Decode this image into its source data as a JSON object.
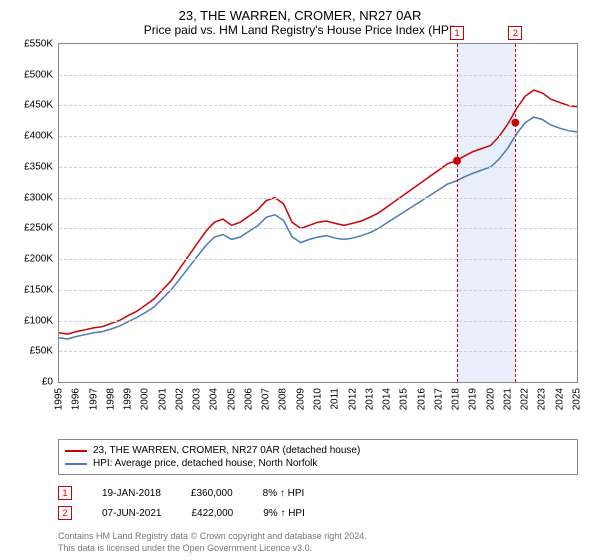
{
  "title": "23, THE WARREN, CROMER, NR27 0AR",
  "subtitle": "Price paid vs. HM Land Registry's House Price Index (HPI)",
  "chart": {
    "type": "line",
    "ylim": [
      0,
      550000
    ],
    "ytick_step": 50000,
    "ytick_format": "£K",
    "xlim": [
      1995,
      2025
    ],
    "xtick_step": 1,
    "grid_color": "#d0d0d0",
    "border_color": "#888888",
    "background_color": "#ffffff",
    "line_width": 1.5,
    "series": [
      {
        "name": "23, THE WARREN, CROMER, NR27 0AR (detached house)",
        "color": "#cc0000",
        "data": [
          [
            1995,
            80000
          ],
          [
            1995.5,
            78000
          ],
          [
            1996,
            82000
          ],
          [
            1996.5,
            85000
          ],
          [
            1997,
            88000
          ],
          [
            1997.5,
            90000
          ],
          [
            1998,
            95000
          ],
          [
            1998.5,
            100000
          ],
          [
            1999,
            108000
          ],
          [
            1999.5,
            115000
          ],
          [
            2000,
            125000
          ],
          [
            2000.5,
            135000
          ],
          [
            2001,
            150000
          ],
          [
            2001.5,
            165000
          ],
          [
            2002,
            185000
          ],
          [
            2002.5,
            205000
          ],
          [
            2003,
            225000
          ],
          [
            2003.5,
            245000
          ],
          [
            2004,
            260000
          ],
          [
            2004.5,
            265000
          ],
          [
            2005,
            255000
          ],
          [
            2005.5,
            260000
          ],
          [
            2006,
            270000
          ],
          [
            2006.5,
            280000
          ],
          [
            2007,
            295000
          ],
          [
            2007.5,
            300000
          ],
          [
            2008,
            290000
          ],
          [
            2008.5,
            260000
          ],
          [
            2009,
            250000
          ],
          [
            2009.5,
            255000
          ],
          [
            2010,
            260000
          ],
          [
            2010.5,
            262000
          ],
          [
            2011,
            258000
          ],
          [
            2011.5,
            255000
          ],
          [
            2012,
            258000
          ],
          [
            2012.5,
            262000
          ],
          [
            2013,
            268000
          ],
          [
            2013.5,
            275000
          ],
          [
            2014,
            285000
          ],
          [
            2014.5,
            295000
          ],
          [
            2015,
            305000
          ],
          [
            2015.5,
            315000
          ],
          [
            2016,
            325000
          ],
          [
            2016.5,
            335000
          ],
          [
            2017,
            345000
          ],
          [
            2017.5,
            355000
          ],
          [
            2018,
            360000
          ],
          [
            2018.5,
            368000
          ],
          [
            2019,
            375000
          ],
          [
            2019.5,
            380000
          ],
          [
            2020,
            385000
          ],
          [
            2020.5,
            400000
          ],
          [
            2021,
            420000
          ],
          [
            2021.5,
            445000
          ],
          [
            2022,
            465000
          ],
          [
            2022.5,
            475000
          ],
          [
            2023,
            470000
          ],
          [
            2023.5,
            460000
          ],
          [
            2024,
            455000
          ],
          [
            2024.5,
            450000
          ],
          [
            2025,
            448000
          ]
        ]
      },
      {
        "name": "HPI: Average price, detached house, North Norfolk",
        "color": "#4a7ab8",
        "data": [
          [
            1995,
            72000
          ],
          [
            1995.5,
            70000
          ],
          [
            1996,
            74000
          ],
          [
            1996.5,
            77000
          ],
          [
            1997,
            80000
          ],
          [
            1997.5,
            82000
          ],
          [
            1998,
            86000
          ],
          [
            1998.5,
            91000
          ],
          [
            1999,
            98000
          ],
          [
            1999.5,
            105000
          ],
          [
            2000,
            113000
          ],
          [
            2000.5,
            122000
          ],
          [
            2001,
            136000
          ],
          [
            2001.5,
            150000
          ],
          [
            2002,
            168000
          ],
          [
            2002.5,
            186000
          ],
          [
            2003,
            204000
          ],
          [
            2003.5,
            222000
          ],
          [
            2004,
            236000
          ],
          [
            2004.5,
            240000
          ],
          [
            2005,
            232000
          ],
          [
            2005.5,
            236000
          ],
          [
            2006,
            245000
          ],
          [
            2006.5,
            254000
          ],
          [
            2007,
            268000
          ],
          [
            2007.5,
            272000
          ],
          [
            2008,
            263000
          ],
          [
            2008.5,
            236000
          ],
          [
            2009,
            227000
          ],
          [
            2009.5,
            232000
          ],
          [
            2010,
            236000
          ],
          [
            2010.5,
            238000
          ],
          [
            2011,
            234000
          ],
          [
            2011.5,
            232000
          ],
          [
            2012,
            234000
          ],
          [
            2012.5,
            238000
          ],
          [
            2013,
            243000
          ],
          [
            2013.5,
            250000
          ],
          [
            2014,
            259000
          ],
          [
            2014.5,
            268000
          ],
          [
            2015,
            277000
          ],
          [
            2015.5,
            286000
          ],
          [
            2016,
            295000
          ],
          [
            2016.5,
            304000
          ],
          [
            2017,
            313000
          ],
          [
            2017.5,
            322000
          ],
          [
            2018,
            327000
          ],
          [
            2018.5,
            334000
          ],
          [
            2019,
            340000
          ],
          [
            2019.5,
            345000
          ],
          [
            2020,
            350000
          ],
          [
            2020.5,
            363000
          ],
          [
            2021,
            381000
          ],
          [
            2021.5,
            404000
          ],
          [
            2022,
            422000
          ],
          [
            2022.5,
            431000
          ],
          [
            2023,
            427000
          ],
          [
            2023.5,
            418000
          ],
          [
            2024,
            413000
          ],
          [
            2024.5,
            409000
          ],
          [
            2025,
            407000
          ]
        ]
      }
    ],
    "sale_markers": [
      {
        "id": "1",
        "year": 2018.05,
        "price": 360000
      },
      {
        "id": "2",
        "year": 2021.43,
        "price": 422000
      }
    ],
    "shade_region": {
      "from": 2018.05,
      "to": 2021.43,
      "color": "rgba(100,150,220,0.15)"
    }
  },
  "legend": {
    "items": [
      {
        "label": "23, THE WARREN, CROMER, NR27 0AR (detached house)",
        "color": "#cc0000"
      },
      {
        "label": "HPI: Average price, detached house, North Norfolk",
        "color": "#4a7ab8"
      }
    ]
  },
  "sales": [
    {
      "marker": "1",
      "date": "19-JAN-2018",
      "price": "£360,000",
      "delta": "8% ↑ HPI"
    },
    {
      "marker": "2",
      "date": "07-JUN-2021",
      "price": "£422,000",
      "delta": "9% ↑ HPI"
    }
  ],
  "footnote_line1": "Contains HM Land Registry data © Crown copyright and database right 2024.",
  "footnote_line2": "This data is licensed under the Open Government Licence v3.0."
}
